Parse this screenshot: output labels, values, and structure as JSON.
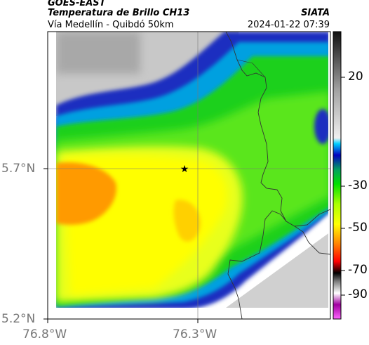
{
  "header": {
    "satellite": "GOES-EAST",
    "product": "Temperatura de Brillo CH13",
    "route": "Vía Medellín - Quibdó 50km",
    "agency": "SIATA",
    "datetime": "2024-01-22 07:39"
  },
  "axes": {
    "lat_labels": [
      "5.7°N",
      "5.2°N"
    ],
    "lon_labels": [
      "76.8°W",
      "76.3°W"
    ]
  },
  "colorbar": {
    "tick_labels": [
      "20",
      "-30",
      "-50",
      "-70",
      "-90"
    ],
    "colors": [
      "#000000",
      "#808080",
      "#ffffff",
      "#00bfff",
      "#0000a0",
      "#00ff00",
      "#ffff00",
      "#ff8c00",
      "#ff0000",
      "#000000",
      "#ff00ff"
    ]
  },
  "marker": {
    "symbol": "★"
  }
}
